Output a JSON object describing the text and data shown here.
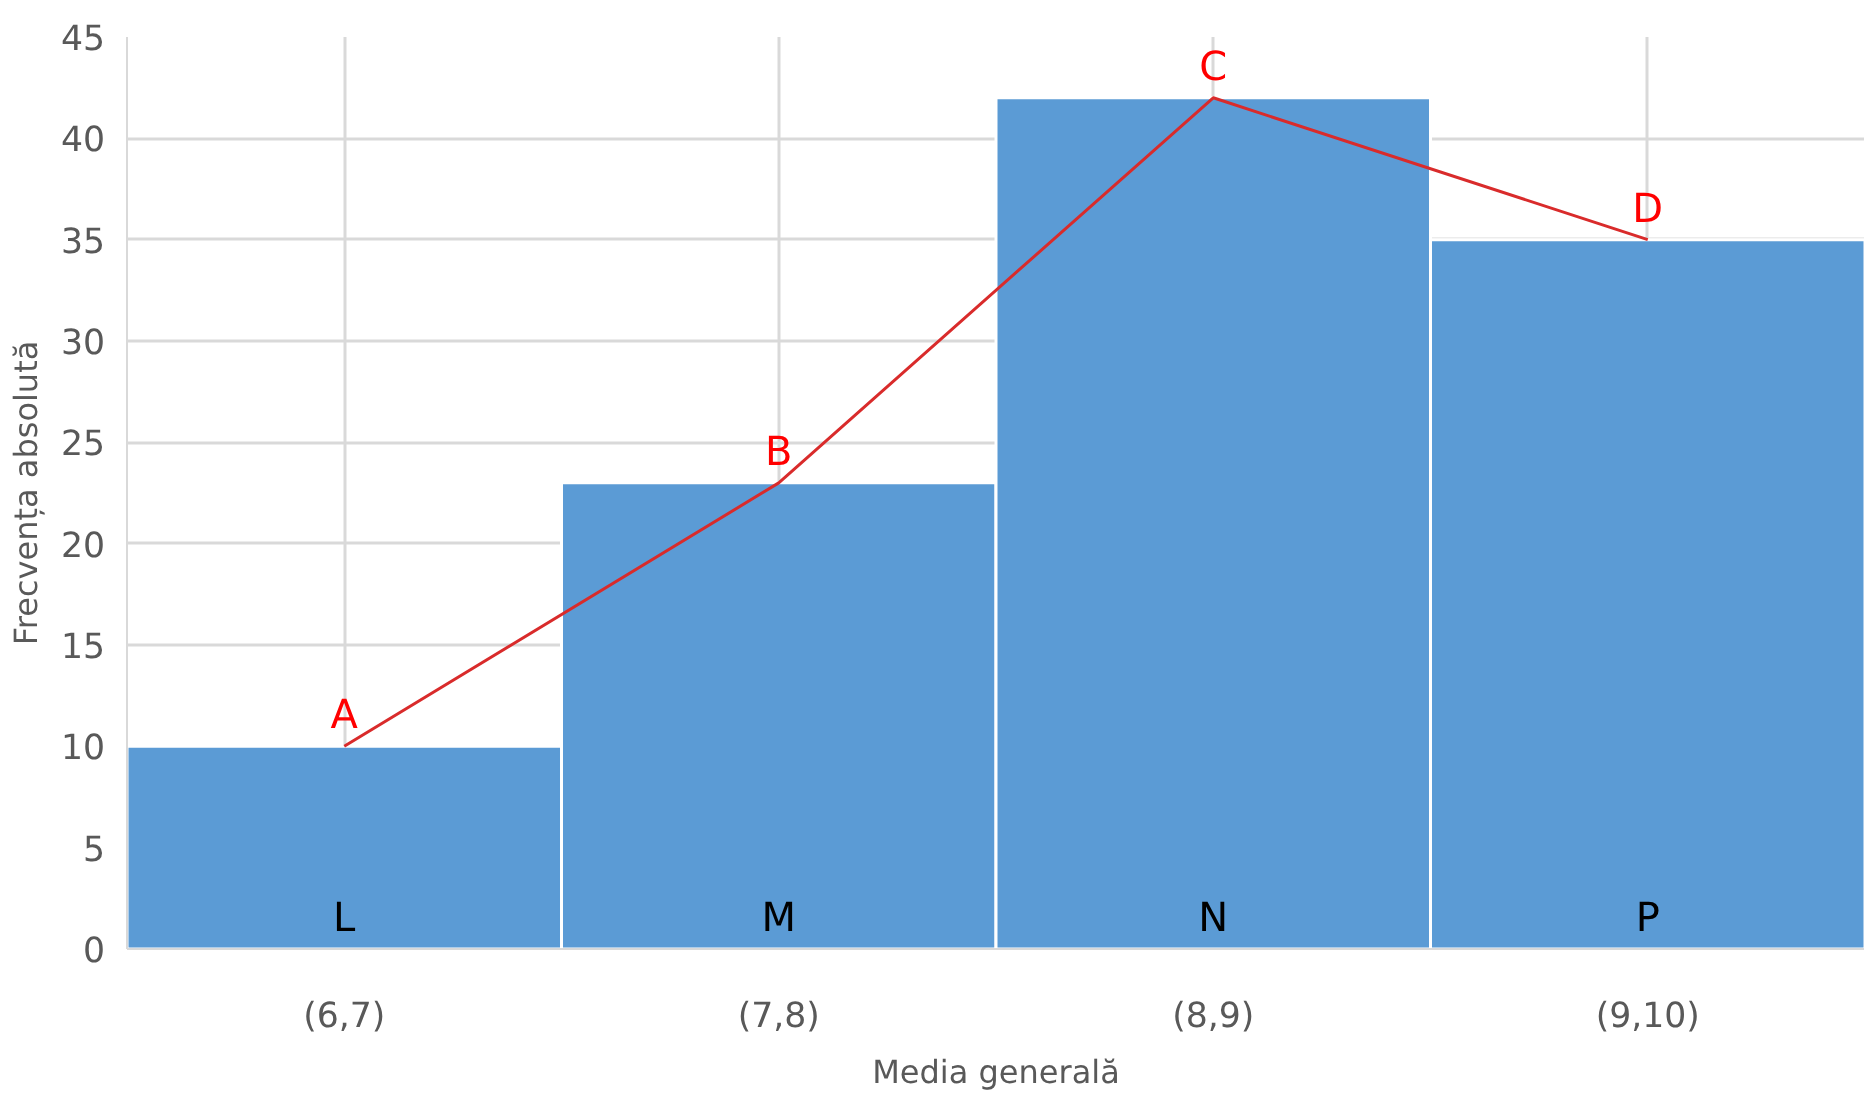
{
  "chart_data": {
    "type": "bar",
    "xlabel": "Media generală",
    "ylabel": "Frecvența absolută",
    "categories": [
      "(6,7)",
      "(7,8)",
      "(8,9)",
      "(9,10)"
    ],
    "series": [
      {
        "color": "#5b9bd5",
        "values": [
          10,
          23,
          42,
          35
        ]
      },
      {
        "type": "line",
        "color": "#d92b2b",
        "values": [
          10,
          23,
          42,
          35
        ]
      }
    ],
    "ylim": [
      0,
      45
    ],
    "yticks": [
      0,
      5,
      10,
      15,
      20,
      25,
      30,
      35,
      40,
      45
    ],
    "grid": true,
    "marker": "none",
    "annotations": [
      {
        "text": "A",
        "x": "(6,7)",
        "y": 10
      },
      {
        "text": "B",
        "x": "(7,8)",
        "y": 23
      },
      {
        "text": "C",
        "x": "(8,9)",
        "y": 42
      },
      {
        "text": "D",
        "x": "(9,10)",
        "y": 35
      },
      {
        "text": "L",
        "x": "(6,7)",
        "y": 0
      },
      {
        "text": "M",
        "x": "(7,8)",
        "y": 0
      },
      {
        "text": "N",
        "x": "(8,9)",
        "y": 0
      },
      {
        "text": "P",
        "x": "(9,10)",
        "y": 0
      }
    ]
  }
}
